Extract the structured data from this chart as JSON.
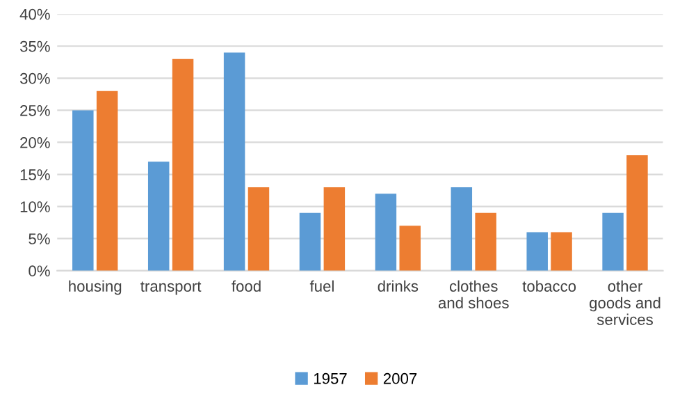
{
  "chart_data": {
    "type": "bar",
    "categories": [
      "housing",
      "transport",
      "food",
      "fuel",
      "drinks",
      "clothes\nand shoes",
      "tobacco",
      "other\ngoods and\nservices"
    ],
    "series": [
      {
        "name": "1957",
        "color": "#5b9bd5",
        "values": [
          25,
          17,
          34,
          9,
          12,
          13,
          6,
          9
        ]
      },
      {
        "name": "2007",
        "color": "#ed7d31",
        "values": [
          28,
          33,
          13,
          13,
          7,
          9,
          6,
          18
        ]
      }
    ],
    "ylim": [
      0,
      40
    ],
    "yticks": [
      {
        "value": 0,
        "label": "0%"
      },
      {
        "value": 5,
        "label": "5%"
      },
      {
        "value": 10,
        "label": "10%"
      },
      {
        "value": 15,
        "label": "15%"
      },
      {
        "value": 20,
        "label": "20%"
      },
      {
        "value": 25,
        "label": "25%"
      },
      {
        "value": 30,
        "label": "30%"
      },
      {
        "value": 35,
        "label": "35%"
      },
      {
        "value": 40,
        "label": "40%"
      }
    ],
    "grid": "y",
    "legend": "bottom"
  }
}
